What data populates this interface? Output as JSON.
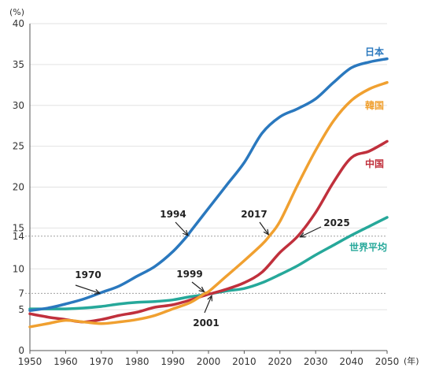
{
  "chart_data": {
    "type": "line",
    "y_unit": "(%)",
    "x_unit": "(年)",
    "x_ticks": [
      1950,
      1960,
      1970,
      1980,
      1990,
      2000,
      2010,
      2020,
      2030,
      2040,
      2050
    ],
    "y_ticks": [
      0,
      5,
      10,
      15,
      20,
      25,
      30,
      35,
      40
    ],
    "xlim": [
      1950,
      2050
    ],
    "ylim": [
      0,
      40
    ],
    "grid": "horizontal",
    "reference_lines": [
      {
        "value": 7,
        "label": "7"
      },
      {
        "value": 14,
        "label": "14"
      }
    ],
    "series": [
      {
        "name": "日本",
        "color": "#2a78be",
        "x": [
          1950,
          1955,
          1960,
          1965,
          1970,
          1975,
          1980,
          1985,
          1990,
          1994,
          1995,
          2000,
          2005,
          2010,
          2015,
          2020,
          2025,
          2030,
          2035,
          2040,
          2045,
          2050
        ],
        "y": [
          4.9,
          5.2,
          5.7,
          6.3,
          7.1,
          7.9,
          9.1,
          10.3,
          12.1,
          14.0,
          14.6,
          17.4,
          20.2,
          23.0,
          26.6,
          28.6,
          29.6,
          30.8,
          32.8,
          34.6,
          35.3,
          35.7
        ]
      },
      {
        "name": "韓国",
        "color": "#f0a030",
        "x": [
          1950,
          1955,
          1960,
          1965,
          1970,
          1975,
          1980,
          1985,
          1990,
          1995,
          1999,
          2000,
          2005,
          2010,
          2015,
          2017,
          2020,
          2025,
          2030,
          2035,
          2040,
          2045,
          2050
        ],
        "y": [
          2.9,
          3.3,
          3.7,
          3.5,
          3.3,
          3.5,
          3.8,
          4.3,
          5.1,
          5.9,
          7.0,
          7.2,
          9.1,
          11.0,
          13.0,
          14.0,
          15.8,
          20.3,
          24.5,
          28.1,
          30.6,
          32.0,
          32.8
        ]
      },
      {
        "name": "中国",
        "color": "#c0303c",
        "x": [
          1950,
          1955,
          1960,
          1965,
          1970,
          1975,
          1980,
          1985,
          1990,
          1995,
          2000,
          2001,
          2005,
          2010,
          2015,
          2020,
          2025,
          2030,
          2035,
          2040,
          2045,
          2050
        ],
        "y": [
          4.5,
          4.1,
          3.8,
          3.5,
          3.8,
          4.3,
          4.7,
          5.3,
          5.6,
          6.2,
          6.9,
          7.0,
          7.5,
          8.3,
          9.6,
          12.0,
          14.0,
          16.9,
          20.6,
          23.6,
          24.4,
          25.6
        ]
      },
      {
        "name": "世界平均",
        "color": "#26a89a",
        "x": [
          1950,
          1955,
          1960,
          1965,
          1970,
          1975,
          1980,
          1985,
          1990,
          1995,
          2000,
          2005,
          2010,
          2015,
          2020,
          2025,
          2030,
          2035,
          2040,
          2045,
          2050
        ],
        "y": [
          5.1,
          5.1,
          5.1,
          5.2,
          5.4,
          5.7,
          5.9,
          6.0,
          6.2,
          6.6,
          6.9,
          7.3,
          7.6,
          8.3,
          9.3,
          10.4,
          11.7,
          12.9,
          14.1,
          15.2,
          16.3
        ]
      }
    ],
    "annotations": [
      {
        "text": "1970",
        "x": 1970,
        "y": 7.1
      },
      {
        "text": "1994",
        "x": 1994,
        "y": 14.0
      },
      {
        "text": "1999",
        "x": 1999,
        "y": 7.0
      },
      {
        "text": "2001",
        "x": 2001,
        "y": 7.0
      },
      {
        "text": "2017",
        "x": 2017,
        "y": 14.0
      },
      {
        "text": "2025",
        "x": 2025,
        "y": 14.0
      }
    ]
  }
}
